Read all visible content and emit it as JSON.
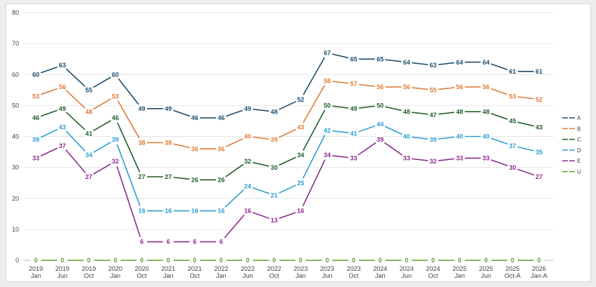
{
  "chart_data": {
    "type": "line",
    "title": "",
    "xlabel": "",
    "ylabel": "",
    "ylim": [
      0,
      80
    ],
    "yticks": [
      0,
      10,
      20,
      30,
      40,
      50,
      60,
      70,
      80
    ],
    "grid": true,
    "legend_position": "right",
    "categories": [
      [
        "2019",
        "Jan"
      ],
      [
        "2019",
        "Jun"
      ],
      [
        "2019",
        "Oct"
      ],
      [
        "2020",
        "Jan"
      ],
      [
        "2020",
        "Oct"
      ],
      [
        "2021",
        "Jan"
      ],
      [
        "2021",
        "Oct"
      ],
      [
        "2022",
        "Jan"
      ],
      [
        "2022",
        "Jun"
      ],
      [
        "2022",
        "Oct"
      ],
      [
        "2023",
        "Jan"
      ],
      [
        "2023",
        "Jun"
      ],
      [
        "2023",
        "Oct"
      ],
      [
        "2024",
        "Jan"
      ],
      [
        "2024",
        "Jun"
      ],
      [
        "2024",
        "Oct"
      ],
      [
        "2025",
        "Jan"
      ],
      [
        "2025",
        "Jun"
      ],
      [
        "2025",
        "Oct-A"
      ],
      [
        "2026",
        "Jan-A"
      ]
    ],
    "series": [
      {
        "name": "A",
        "color": "#1f4e6e",
        "values": [
          60,
          63,
          55,
          60,
          49,
          49,
          46,
          46,
          49,
          48,
          52,
          67,
          65,
          65,
          64,
          63,
          64,
          64,
          61,
          61
        ]
      },
      {
        "name": "B",
        "color": "#e07b39",
        "values": [
          53,
          56,
          48,
          53,
          38,
          38,
          36,
          36,
          40,
          39,
          43,
          58,
          57,
          56,
          56,
          55,
          56,
          56,
          53,
          52
        ]
      },
      {
        "name": "C",
        "color": "#1e5e2a",
        "values": [
          46,
          49,
          41,
          46,
          27,
          27,
          26,
          26,
          32,
          30,
          34,
          50,
          49,
          50,
          48,
          47,
          48,
          48,
          45,
          43
        ]
      },
      {
        "name": "D",
        "color": "#2b9fd0",
        "values": [
          39,
          43,
          34,
          39,
          16,
          16,
          16,
          16,
          24,
          21,
          25,
          42,
          41,
          44,
          40,
          39,
          40,
          40,
          37,
          35
        ]
      },
      {
        "name": "E",
        "color": "#8e2a8e",
        "values": [
          33,
          37,
          27,
          32,
          6,
          6,
          6,
          6,
          16,
          13,
          16,
          34,
          33,
          39,
          33,
          32,
          33,
          33,
          30,
          27
        ]
      },
      {
        "name": "U",
        "color": "#5aa02c",
        "values": [
          0,
          0,
          0,
          0,
          0,
          0,
          0,
          0,
          0,
          0,
          0,
          0,
          0,
          0,
          0,
          0,
          0,
          0,
          0,
          0
        ]
      }
    ]
  }
}
